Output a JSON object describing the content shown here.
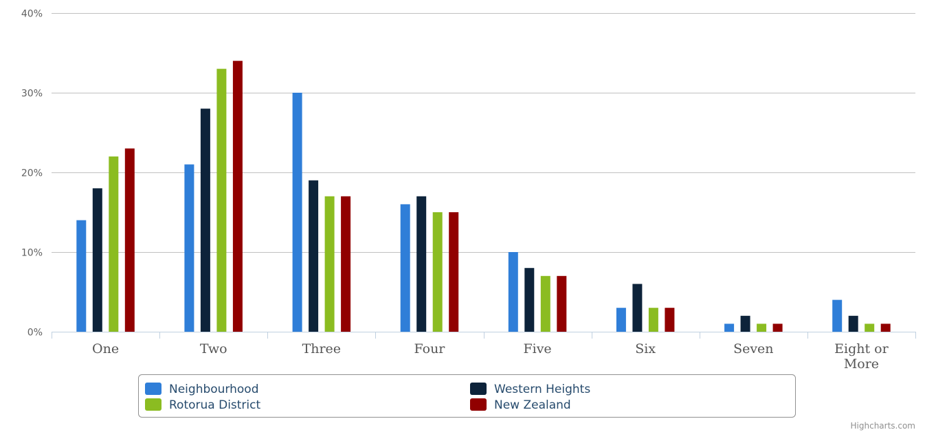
{
  "chart_data": {
    "type": "bar",
    "categories": [
      "One",
      "Two",
      "Three",
      "Four",
      "Five",
      "Six",
      "Seven",
      "Eight or More"
    ],
    "series": [
      {
        "name": "Neighbourhood",
        "color": "#2f7ed8",
        "values": [
          14,
          21,
          30,
          16,
          10,
          3,
          1,
          4
        ]
      },
      {
        "name": "Western Heights",
        "color": "#0d233a",
        "values": [
          18,
          28,
          19,
          17,
          8,
          6,
          2,
          2
        ]
      },
      {
        "name": "Rotorua District",
        "color": "#8bbc21",
        "values": [
          22,
          33,
          17,
          15,
          7,
          3,
          1,
          1
        ]
      },
      {
        "name": "New Zealand",
        "color": "#910000",
        "values": [
          23,
          34,
          17,
          15,
          7,
          3,
          1,
          1
        ]
      }
    ],
    "ylim": [
      0,
      40
    ],
    "yticks": [
      "0%",
      "10%",
      "20%",
      "30%",
      "40%"
    ],
    "grid": true,
    "legend_position": "bottom-center",
    "credits": "Highcharts.com"
  }
}
